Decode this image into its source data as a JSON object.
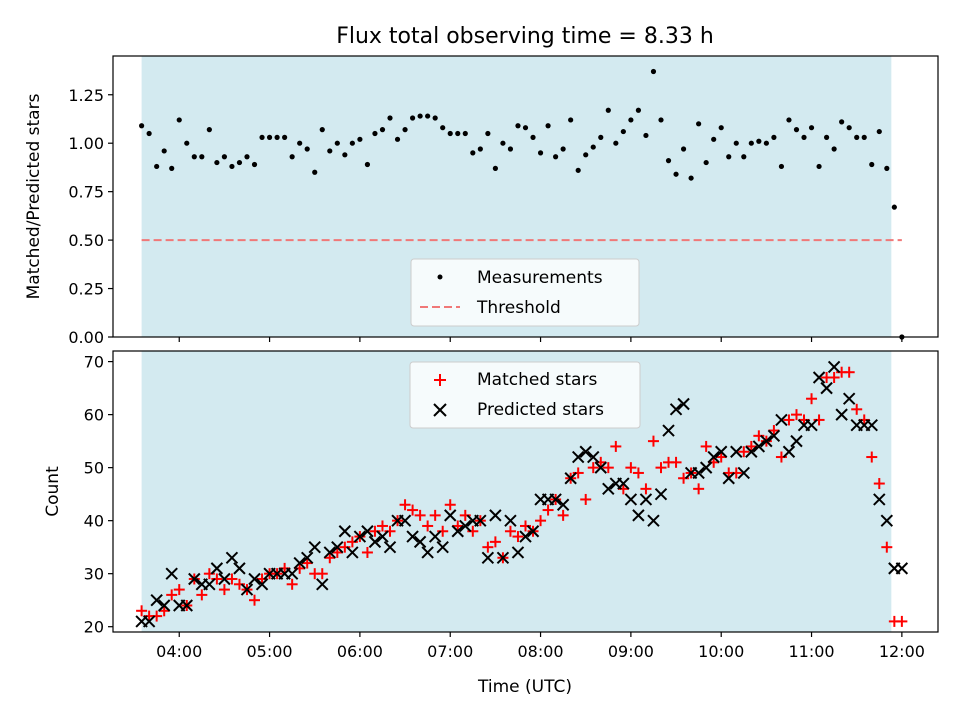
{
  "chart_data": [
    {
      "type": "scatter",
      "title": "Flux total observing time = 8.33 h",
      "xlabel": "",
      "ylabel": "Matched/Predicted stars",
      "ylim": [
        0,
        1.45
      ],
      "yticks": [
        "0.00",
        "0.25",
        "0.50",
        "0.75",
        "1.00",
        "1.25"
      ],
      "ytick_values": [
        0,
        0.25,
        0.5,
        0.75,
        1.0,
        1.25
      ],
      "shaded_span": {
        "start": "03:35",
        "end": "11:53",
        "color": "#d3eaf0"
      },
      "legend_position": "lower center",
      "threshold": {
        "name": "Threshold",
        "value": 0.5,
        "color": "#f07878",
        "style": "dashed"
      },
      "series": [
        {
          "name": "Measurements",
          "color": "#000000",
          "marker": "dot",
          "x": [
            "03:35",
            "03:40",
            "03:45",
            "03:50",
            "03:55",
            "04:00",
            "04:05",
            "04:10",
            "04:15",
            "04:20",
            "04:25",
            "04:30",
            "04:35",
            "04:40",
            "04:45",
            "04:50",
            "04:55",
            "05:00",
            "05:05",
            "05:10",
            "05:15",
            "05:20",
            "05:25",
            "05:30",
            "05:35",
            "05:40",
            "05:45",
            "05:50",
            "05:55",
            "06:00",
            "06:05",
            "06:10",
            "06:15",
            "06:20",
            "06:25",
            "06:30",
            "06:35",
            "06:40",
            "06:45",
            "06:50",
            "06:55",
            "07:00",
            "07:05",
            "07:10",
            "07:15",
            "07:20",
            "07:25",
            "07:30",
            "07:35",
            "07:40",
            "07:45",
            "07:50",
            "07:55",
            "08:00",
            "08:05",
            "08:10",
            "08:15",
            "08:20",
            "08:25",
            "08:30",
            "08:35",
            "08:40",
            "08:45",
            "08:50",
            "08:55",
            "09:00",
            "09:05",
            "09:10",
            "09:15",
            "09:20",
            "09:25",
            "09:30",
            "09:35",
            "09:40",
            "09:45",
            "09:50",
            "09:55",
            "10:00",
            "10:05",
            "10:10",
            "10:15",
            "10:20",
            "10:25",
            "10:30",
            "10:35",
            "10:40",
            "10:45",
            "10:50",
            "10:55",
            "11:00",
            "11:05",
            "11:10",
            "11:15",
            "11:20",
            "11:25",
            "11:30",
            "11:35",
            "11:40",
            "11:45",
            "11:50",
            "11:55",
            "12:00"
          ],
          "values": [
            1.09,
            1.05,
            0.88,
            0.96,
            0.87,
            1.12,
            1.0,
            0.93,
            0.93,
            1.07,
            0.9,
            0.93,
            0.88,
            0.9,
            0.93,
            0.89,
            1.03,
            1.03,
            1.03,
            1.03,
            0.93,
            1.0,
            0.97,
            0.85,
            1.07,
            0.96,
            1.0,
            0.94,
            1.0,
            1.02,
            0.89,
            1.05,
            1.07,
            1.13,
            1.02,
            1.07,
            1.13,
            1.14,
            1.14,
            1.13,
            1.08,
            1.05,
            1.05,
            1.05,
            0.95,
            0.97,
            1.05,
            0.87,
            1.0,
            0.97,
            1.09,
            1.08,
            1.03,
            0.95,
            1.09,
            0.93,
            0.97,
            1.12,
            0.86,
            0.94,
            0.98,
            1.03,
            1.17,
            1.0,
            1.06,
            1.12,
            1.17,
            1.04,
            1.37,
            1.12,
            0.91,
            0.84,
            0.97,
            0.82,
            1.1,
            0.9,
            1.02,
            1.08,
            0.93,
            1.0,
            0.93,
            1.0,
            1.01,
            1.0,
            1.03,
            0.88,
            1.12,
            1.07,
            1.03,
            1.08,
            0.88,
            1.03,
            0.97,
            1.11,
            1.08,
            1.03,
            1.03,
            0.89,
            1.06,
            0.87,
            0.67,
            0.0
          ]
        }
      ]
    },
    {
      "type": "scatter",
      "title": "",
      "xlabel": "Time (UTC)",
      "ylabel": "Count",
      "ylim": [
        19,
        72
      ],
      "yticks": [
        "20",
        "30",
        "40",
        "50",
        "60",
        "70"
      ],
      "ytick_values": [
        20,
        30,
        40,
        50,
        60,
        70
      ],
      "xticks": [
        "04:00",
        "05:00",
        "06:00",
        "07:00",
        "08:00",
        "09:00",
        "10:00",
        "11:00",
        "12:00"
      ],
      "xlim": [
        "03:16",
        "12:24"
      ],
      "shaded_span": {
        "start": "03:35",
        "end": "11:53",
        "color": "#d3eaf0"
      },
      "legend_position": "upper center",
      "series": [
        {
          "name": "Matched stars",
          "color": "#ff0000",
          "marker": "plus",
          "x": [
            "03:35",
            "03:40",
            "03:45",
            "03:50",
            "03:55",
            "04:00",
            "04:05",
            "04:10",
            "04:15",
            "04:20",
            "04:25",
            "04:30",
            "04:35",
            "04:40",
            "04:45",
            "04:50",
            "04:55",
            "05:00",
            "05:05",
            "05:10",
            "05:15",
            "05:20",
            "05:25",
            "05:30",
            "05:35",
            "05:40",
            "05:45",
            "05:50",
            "05:55",
            "06:00",
            "06:05",
            "06:10",
            "06:15",
            "06:20",
            "06:25",
            "06:30",
            "06:35",
            "06:40",
            "06:45",
            "06:50",
            "06:55",
            "07:00",
            "07:05",
            "07:10",
            "07:15",
            "07:20",
            "07:25",
            "07:30",
            "07:35",
            "07:40",
            "07:45",
            "07:50",
            "07:55",
            "08:00",
            "08:05",
            "08:10",
            "08:15",
            "08:20",
            "08:25",
            "08:30",
            "08:35",
            "08:40",
            "08:45",
            "08:50",
            "08:55",
            "09:00",
            "09:05",
            "09:10",
            "09:15",
            "09:20",
            "09:25",
            "09:30",
            "09:35",
            "09:40",
            "09:45",
            "09:50",
            "09:55",
            "10:00",
            "10:05",
            "10:10",
            "10:15",
            "10:20",
            "10:25",
            "10:30",
            "10:35",
            "10:40",
            "10:45",
            "10:50",
            "10:55",
            "11:00",
            "11:05",
            "11:10",
            "11:15",
            "11:20",
            "11:25",
            "11:30",
            "11:35",
            "11:40",
            "11:45",
            "11:50",
            "11:55",
            "12:00"
          ],
          "values": [
            23,
            22,
            22,
            23,
            26,
            27,
            24,
            29,
            26,
            30,
            29,
            27,
            29,
            28,
            27,
            25,
            29,
            30,
            30,
            31,
            28,
            31,
            32,
            30,
            30,
            33,
            34,
            35,
            36,
            37,
            34,
            38,
            39,
            38,
            40,
            43,
            42,
            41,
            39,
            41,
            38,
            43,
            39,
            41,
            38,
            40,
            35,
            36,
            33,
            38,
            37,
            39,
            38,
            40,
            42,
            44,
            41,
            48,
            49,
            44,
            50,
            51,
            50,
            54,
            46,
            50,
            49,
            46,
            55,
            50,
            51,
            51,
            48,
            49,
            46,
            54,
            51,
            52,
            49,
            49,
            53,
            54,
            56,
            55,
            57,
            52,
            59,
            60,
            59,
            63,
            59,
            67,
            67,
            68,
            68,
            61,
            59,
            52,
            47,
            35,
            21,
            21
          ]
        },
        {
          "name": "Predicted stars",
          "color": "#000000",
          "marker": "x",
          "x": [
            "03:35",
            "03:40",
            "03:45",
            "03:50",
            "03:55",
            "04:00",
            "04:05",
            "04:10",
            "04:15",
            "04:20",
            "04:25",
            "04:30",
            "04:35",
            "04:40",
            "04:45",
            "04:50",
            "04:55",
            "05:00",
            "05:05",
            "05:10",
            "05:15",
            "05:20",
            "05:25",
            "05:30",
            "05:35",
            "05:40",
            "05:45",
            "05:50",
            "05:55",
            "06:00",
            "06:05",
            "06:10",
            "06:15",
            "06:20",
            "06:25",
            "06:30",
            "06:35",
            "06:40",
            "06:45",
            "06:50",
            "06:55",
            "07:00",
            "07:05",
            "07:10",
            "07:15",
            "07:20",
            "07:25",
            "07:30",
            "07:35",
            "07:40",
            "07:45",
            "07:50",
            "07:55",
            "08:00",
            "08:05",
            "08:10",
            "08:15",
            "08:20",
            "08:25",
            "08:30",
            "08:35",
            "08:40",
            "08:45",
            "08:50",
            "08:55",
            "09:00",
            "09:05",
            "09:10",
            "09:15",
            "09:20",
            "09:25",
            "09:30",
            "09:35",
            "09:40",
            "09:45",
            "09:50",
            "09:55",
            "10:00",
            "10:05",
            "10:10",
            "10:15",
            "10:20",
            "10:25",
            "10:30",
            "10:35",
            "10:40",
            "10:45",
            "10:50",
            "10:55",
            "11:00",
            "11:05",
            "11:10",
            "11:15",
            "11:20",
            "11:25",
            "11:30",
            "11:35",
            "11:40",
            "11:45",
            "11:50",
            "11:55",
            "12:00"
          ],
          "values": [
            21,
            21,
            25,
            24,
            30,
            24,
            24,
            29,
            28,
            28,
            31,
            29,
            33,
            31,
            27,
            29,
            28,
            30,
            30,
            30,
            30,
            32,
            33,
            35,
            28,
            34,
            35,
            38,
            34,
            37,
            38,
            36,
            37,
            35,
            40,
            40,
            37,
            36,
            34,
            37,
            35,
            41,
            38,
            39,
            40,
            40,
            33,
            41,
            33,
            40,
            34,
            37,
            38,
            44,
            44,
            44,
            43,
            48,
            52,
            53,
            52,
            50,
            46,
            47,
            47,
            44,
            41,
            44,
            40,
            45,
            57,
            61,
            62,
            49,
            49,
            50,
            52,
            53,
            48,
            53,
            49,
            53,
            54,
            55,
            56,
            59,
            53,
            55,
            58,
            58,
            67,
            65,
            69,
            60,
            63,
            58,
            58,
            58,
            44,
            40,
            31,
            31
          ]
        }
      ]
    }
  ]
}
